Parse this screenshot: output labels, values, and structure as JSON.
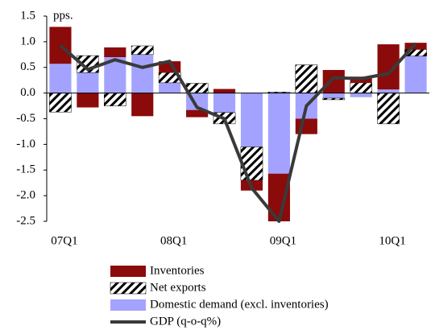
{
  "chart_data": {
    "type": "bar-line",
    "annotation": "pps.",
    "categories": [
      "07Q1",
      null,
      null,
      null,
      "08Q1",
      null,
      null,
      null,
      "09Q1",
      null,
      null,
      null,
      "10Q1",
      null
    ],
    "series": [
      {
        "name": "Inventories",
        "type": "bar",
        "color": "#8b0a0a",
        "values": [
          0.72,
          -0.28,
          0.19,
          -0.45,
          0.22,
          -0.14,
          0.08,
          -0.2,
          -0.93,
          -0.3,
          0.45,
          0.12,
          0.88,
          0.13
        ]
      },
      {
        "name": "Net exports",
        "type": "bar",
        "color": "#ffffff",
        "pattern": "hatch",
        "values": [
          -0.37,
          0.33,
          -0.25,
          0.17,
          0.2,
          0.19,
          -0.22,
          -0.65,
          0.02,
          0.55,
          -0.03,
          0.2,
          -0.6,
          0.13
        ]
      },
      {
        "name": "Domestic demand (excl. inventories)",
        "type": "bar",
        "color": "#a3a3ff",
        "values": [
          0.57,
          0.4,
          0.7,
          0.75,
          0.2,
          -0.33,
          -0.38,
          -1.05,
          -1.57,
          -0.5,
          -0.1,
          -0.08,
          0.07,
          0.72
        ]
      },
      {
        "name": "GDP (q-o-q%)",
        "type": "line",
        "color": "#3a3a3a",
        "values": [
          0.93,
          0.46,
          0.65,
          0.5,
          0.62,
          -0.28,
          -0.5,
          -1.85,
          -2.5,
          -0.25,
          0.3,
          0.28,
          0.38,
          0.97
        ]
      }
    ],
    "ylim": [
      -2.5,
      1.5
    ],
    "yticks": [
      1.5,
      {
        "value": 1,
        "label": "1.0"
      },
      0.5,
      {
        "value": 0,
        "label": "0.0"
      },
      -0.5,
      {
        "value": -1,
        "label": "-1.0"
      },
      -1.5,
      {
        "value": -2,
        "label": "-2.0"
      },
      -2.5
    ]
  }
}
